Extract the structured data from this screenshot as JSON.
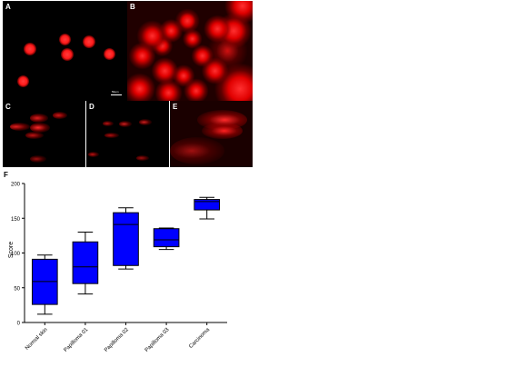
{
  "panels": {
    "A": "A",
    "B": "B",
    "C": "C",
    "D": "D",
    "E": "E",
    "F": "F",
    "scale_bar": "50μm"
  },
  "chart_data": {
    "type": "box",
    "title": "",
    "xlabel": "",
    "ylabel": "Score",
    "ylim": [
      0,
      200
    ],
    "yticks": [
      0,
      50,
      100,
      150,
      200
    ],
    "categories": [
      "Normal skin",
      "Papilloma 01",
      "Papilloma 02",
      "Papilloma 03",
      "Carcinoma"
    ],
    "boxes": [
      {
        "min": 12,
        "q1": 26,
        "median": 59,
        "q3": 91,
        "max": 97
      },
      {
        "min": 41,
        "q1": 56,
        "median": 80,
        "q3": 116,
        "max": 130
      },
      {
        "min": 77,
        "q1": 82,
        "median": 141,
        "q3": 158,
        "max": 165
      },
      {
        "min": 105,
        "q1": 109,
        "median": 119,
        "q3": 135,
        "max": 136
      },
      {
        "min": 149,
        "q1": 162,
        "median": 174,
        "q3": 177,
        "max": 180
      }
    ],
    "box_color": "#0000ff",
    "grid": false
  }
}
